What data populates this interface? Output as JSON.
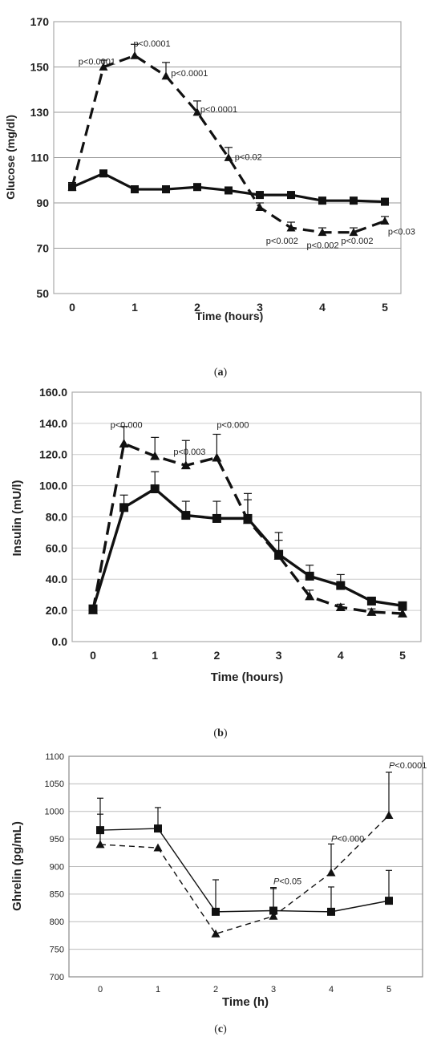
{
  "chart_data": [
    {
      "type": "line",
      "panel_label": "(a)",
      "title": "",
      "xlabel": "Time (hours)",
      "ylabel": "Glucose (mg/dl)",
      "xlim": [
        0,
        5
      ],
      "ylim": [
        50,
        170
      ],
      "x_ticks": [
        "0",
        "1",
        "2",
        "3",
        "4",
        "5"
      ],
      "y_ticks": [
        "50",
        "70",
        "90",
        "110",
        "130",
        "150",
        "170"
      ],
      "grid": true,
      "series": [
        {
          "style": "solid",
          "marker": "square",
          "x": [
            0,
            0.5,
            1,
            1.5,
            2,
            2.5,
            3,
            3.5,
            4,
            4.5,
            5
          ],
          "values": [
            97,
            103,
            96,
            96,
            97,
            95.5,
            93.5,
            93.5,
            91,
            91,
            90.5
          ],
          "err": [
            1.5,
            1.5,
            1.5,
            1.5,
            1.5,
            1.5,
            1.5,
            1.5,
            1.5,
            1.5,
            1.5
          ]
        },
        {
          "style": "dashed",
          "marker": "triangle",
          "x": [
            0,
            0.5,
            1,
            1.5,
            2,
            2.5,
            3,
            3.5,
            4,
            4.5,
            5
          ],
          "values": [
            97,
            150,
            155,
            146,
            130,
            110,
            88,
            79,
            77,
            77,
            82
          ],
          "err": [
            2,
            3,
            5,
            6,
            5,
            4.5,
            2,
            2.5,
            2,
            2,
            2
          ]
        }
      ],
      "annotations": [
        {
          "text": "p<0.0001",
          "x": 0.1,
          "y": 151
        },
        {
          "text": "p<0.0001",
          "x": 0.98,
          "y": 159
        },
        {
          "text": "p<0.0001",
          "x": 1.58,
          "y": 146
        },
        {
          "text": "p<0.0001",
          "x": 2.05,
          "y": 130
        },
        {
          "text": "p<0.02",
          "x": 2.6,
          "y": 109
        },
        {
          "text": "p<0.002",
          "x": 3.1,
          "y": 72
        },
        {
          "text": "p<0.002",
          "x": 3.75,
          "y": 70
        },
        {
          "text": "p<0.002",
          "x": 4.3,
          "y": 72
        },
        {
          "text": "p<0.03",
          "x": 5.05,
          "y": 76
        }
      ],
      "colors": {
        "line": "#111111",
        "grid": "#9a9a9a",
        "border": "#aaaaaa"
      }
    },
    {
      "type": "line",
      "panel_label": "(b)",
      "title": "",
      "xlabel": "Time (hours)",
      "ylabel": "Insulin (mU/l)",
      "xlim": [
        0,
        5
      ],
      "ylim": [
        0,
        160
      ],
      "x_ticks": [
        "0",
        "1",
        "2",
        "3",
        "4",
        "5"
      ],
      "y_ticks": [
        "0.0",
        "20.0",
        "40.0",
        "60.0",
        "80.0",
        "100.0",
        "120.0",
        "140.0",
        "160.0"
      ],
      "grid": true,
      "series": [
        {
          "style": "solid",
          "marker": "square",
          "x": [
            0,
            0.5,
            1,
            1.5,
            2,
            2.5,
            3,
            3.5,
            4,
            4.5,
            5
          ],
          "values": [
            21,
            86,
            98,
            81,
            79,
            79,
            56,
            42,
            36,
            26,
            23
          ],
          "err": [
            2,
            8,
            11,
            9,
            11,
            16,
            14,
            7,
            7,
            2,
            2
          ]
        },
        {
          "style": "dashed",
          "marker": "triangle",
          "x": [
            0,
            0.5,
            1,
            1.5,
            2,
            2.5,
            3,
            3.5,
            4,
            4.5,
            5
          ],
          "values": [
            20,
            127,
            119,
            113,
            118,
            78,
            55,
            29,
            22,
            19,
            18
          ],
          "err": [
            2,
            11,
            12,
            16,
            15,
            13,
            10,
            4,
            2,
            2,
            2
          ]
        }
      ],
      "annotations": [
        {
          "text": "p<0.000",
          "x": 0.28,
          "y": 137
        },
        {
          "text": "p<0.003",
          "x": 1.3,
          "y": 120
        },
        {
          "text": "p<0.000",
          "x": 2.0,
          "y": 137
        }
      ],
      "colors": {
        "line": "#111111",
        "grid": "#cccccc",
        "border": "#aaaaaa"
      }
    },
    {
      "type": "line",
      "panel_label": "(c)",
      "title": "",
      "xlabel": "Time (h)",
      "ylabel": "Ghrelin (pg/mL)",
      "xlim": [
        0,
        5
      ],
      "ylim": [
        700,
        1100
      ],
      "x_ticks": [
        "0",
        "1",
        "2",
        "3",
        "4",
        "5"
      ],
      "y_ticks": [
        "700",
        "750",
        "800",
        "850",
        "900",
        "950",
        "1000",
        "1050",
        "1100"
      ],
      "grid": true,
      "series": [
        {
          "style": "solid",
          "marker": "square",
          "x": [
            0,
            1,
            2,
            3,
            4,
            5
          ],
          "values": [
            966,
            969,
            818,
            820,
            818,
            838
          ],
          "err": [
            58,
            38,
            58,
            42,
            45,
            55
          ]
        },
        {
          "style": "dashed",
          "marker": "triangle",
          "x": [
            0,
            1,
            2,
            3,
            4,
            5
          ],
          "values": [
            940,
            934,
            778,
            810,
            889,
            993
          ],
          "err": [
            55,
            0,
            0,
            50,
            52,
            78
          ]
        }
      ],
      "annotations": [
        {
          "text": "P<0.05",
          "x": 3.0,
          "y": 868
        },
        {
          "text": "P<0.000",
          "x": 4.0,
          "y": 945
        },
        {
          "text": "P<0.0001",
          "x": 5.0,
          "y": 1078
        }
      ],
      "colors": {
        "line": "#111111",
        "grid": "#bbbbbb",
        "border": "#888888"
      }
    }
  ]
}
